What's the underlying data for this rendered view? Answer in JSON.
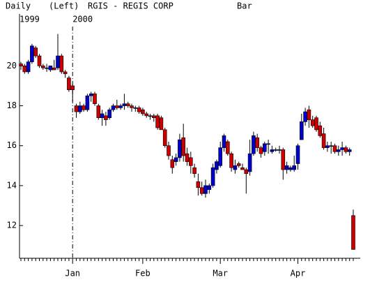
{
  "chart_data": {
    "type": "candlestick",
    "period": "Daily",
    "axis_side": "(Left)",
    "title": "RGIS - REGIS CORP",
    "style": "Bar",
    "years": [
      "1999",
      "2000"
    ],
    "categories": [
      null,
      null,
      null,
      null,
      null,
      null,
      null,
      null,
      null,
      null,
      null,
      null,
      null,
      null,
      "Jan",
      null,
      null,
      null,
      null,
      null,
      null,
      null,
      null,
      null,
      null,
      null,
      null,
      null,
      null,
      null,
      null,
      null,
      null,
      "Feb",
      null,
      null,
      null,
      null,
      null,
      null,
      null,
      null,
      null,
      null,
      null,
      null,
      null,
      null,
      null,
      null,
      null,
      null,
      null,
      null,
      "Mar",
      null,
      null,
      null,
      null,
      null,
      null,
      null,
      null,
      null,
      null,
      null,
      null,
      null,
      null,
      null,
      null,
      null,
      null,
      null,
      null,
      "Apr",
      null,
      null,
      null,
      null,
      null,
      null,
      null,
      null,
      null,
      null,
      null,
      null,
      null,
      null,
      null
    ],
    "open": [
      20.1,
      20.0,
      19.7,
      20.2,
      20.9,
      20.5,
      20.0,
      19.9,
      19.8,
      19.9,
      19.9,
      20.5,
      19.7,
      19.4,
      19.0,
      18.0,
      17.7,
      18.0,
      17.8,
      18.5,
      18.6,
      18.0,
      17.4,
      17.5,
      17.4,
      17.8,
      18.0,
      17.9,
      18.0,
      18.1,
      18.0,
      17.9,
      17.9,
      17.8,
      17.6,
      17.5,
      17.5,
      17.5,
      17.4,
      16.8,
      16.0,
      15.3,
      15.2,
      15.4,
      16.4,
      15.6,
      15.4,
      14.9,
      14.2,
      13.9,
      13.6,
      13.8,
      14.0,
      14.8,
      15.0,
      15.9,
      16.2,
      15.6,
      14.8,
      15.1,
      14.9,
      14.8,
      14.7,
      15.6,
      16.4,
      15.9,
      15.7,
      16.1,
      15.7,
      15.8,
      15.8,
      15.8,
      14.8,
      14.8,
      14.8,
      15.1,
      16.3,
      17.2,
      17.8,
      17.3,
      17.4,
      17.0,
      16.6,
      15.9,
      16.0,
      16.0,
      15.7,
      15.8,
      15.9,
      15.7,
      12.5
    ],
    "high": [
      20.2,
      20.1,
      20.3,
      21.1,
      21.0,
      20.6,
      20.1,
      20.1,
      20.0,
      20.3,
      21.6,
      20.6,
      19.8,
      19.5,
      19.1,
      18.1,
      18.2,
      18.1,
      18.6,
      18.7,
      18.7,
      18.1,
      17.8,
      17.7,
      17.9,
      18.1,
      18.3,
      18.1,
      18.6,
      18.2,
      18.1,
      18.0,
      18.0,
      17.9,
      17.7,
      17.6,
      17.6,
      17.6,
      17.5,
      16.9,
      16.2,
      15.5,
      15.6,
      16.6,
      17.1,
      15.9,
      15.7,
      15.1,
      14.6,
      14.2,
      14.3,
      14.1,
      15.1,
      15.3,
      16.2,
      16.6,
      16.3,
      15.7,
      15.3,
      15.2,
      15.1,
      14.9,
      16.3,
      16.7,
      16.6,
      16.0,
      16.2,
      16.3,
      16.0,
      15.9,
      16.0,
      15.9,
      15.2,
      15.0,
      15.5,
      16.1,
      17.6,
      17.9,
      18.0,
      17.5,
      17.5,
      17.2,
      16.9,
      16.2,
      16.2,
      16.1,
      16.0,
      16.2,
      16.0,
      15.9,
      12.8
    ],
    "low": [
      19.8,
      19.6,
      19.6,
      20.1,
      20.4,
      19.9,
      19.8,
      19.7,
      19.7,
      19.8,
      19.8,
      19.6,
      19.4,
      18.7,
      18.2,
      17.4,
      17.6,
      17.7,
      17.7,
      18.2,
      18.0,
      17.3,
      17.0,
      17.0,
      17.3,
      17.7,
      17.8,
      17.8,
      17.8,
      17.9,
      17.7,
      17.7,
      17.6,
      17.5,
      17.4,
      17.3,
      17.2,
      16.8,
      16.8,
      15.9,
      15.3,
      14.6,
      15.0,
      15.2,
      15.2,
      15.0,
      14.6,
      14.4,
      13.5,
      13.5,
      13.4,
      13.6,
      13.9,
      14.6,
      14.9,
      15.7,
      15.5,
      14.7,
      14.6,
      14.9,
      14.8,
      13.6,
      14.5,
      15.5,
      15.7,
      15.4,
      15.5,
      15.6,
      15.6,
      15.7,
      15.6,
      14.3,
      14.6,
      14.7,
      14.7,
      14.8,
      16.4,
      17.0,
      16.9,
      16.9,
      16.7,
      16.4,
      15.8,
      15.7,
      15.6,
      15.6,
      15.5,
      15.5,
      15.6,
      15.5,
      10.8
    ],
    "close": [
      20.0,
      19.7,
      20.2,
      21.0,
      20.5,
      20.0,
      19.9,
      19.9,
      20.0,
      19.8,
      20.5,
      19.7,
      19.6,
      18.8,
      18.8,
      17.7,
      18.0,
      17.8,
      18.5,
      18.6,
      18.1,
      17.4,
      17.6,
      17.3,
      17.8,
      18.0,
      17.9,
      18.0,
      18.1,
      18.0,
      17.9,
      17.9,
      17.7,
      17.6,
      17.5,
      17.5,
      17.4,
      16.9,
      16.8,
      16.0,
      15.5,
      14.9,
      15.4,
      16.3,
      15.5,
      15.2,
      15.0,
      14.6,
      13.9,
      13.6,
      14.0,
      14.0,
      14.9,
      15.2,
      15.9,
      16.5,
      15.6,
      14.9,
      15.0,
      15.0,
      14.8,
      14.6,
      15.6,
      16.5,
      15.9,
      15.6,
      16.1,
      16.1,
      15.8,
      15.8,
      15.8,
      14.8,
      15.0,
      14.9,
      15.0,
      16.0,
      17.2,
      17.7,
      17.3,
      17.0,
      16.8,
      16.5,
      15.9,
      16.0,
      16.0,
      15.7,
      15.8,
      15.9,
      15.7,
      15.8,
      10.8
    ],
    "up_color": "#0000cc",
    "down_color": "#cc0000",
    "ylim": [
      10.36,
      22.6
    ],
    "yticks": [
      12,
      14,
      16,
      18,
      20
    ]
  }
}
